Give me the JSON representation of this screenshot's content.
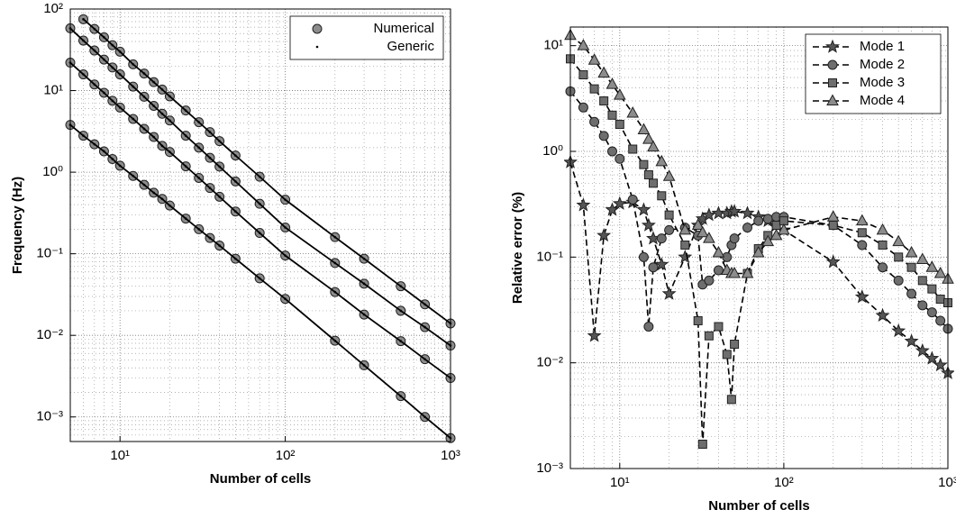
{
  "chart_data": [
    {
      "type": "line",
      "xlabel": "Number of cells",
      "ylabel": "Frequency (Hz)",
      "log_x": true,
      "log_y": true,
      "grid": true,
      "legend": "upper right",
      "xlim": [
        5,
        1000
      ],
      "ylim": [
        0.0005,
        100
      ],
      "xticks": [
        {
          "value": 10,
          "label": "10¹"
        },
        {
          "value": 100,
          "label": "10²"
        },
        {
          "value": 1000,
          "label": "10³"
        }
      ],
      "yticks": [
        {
          "value": 0.001,
          "label": "10⁻³"
        },
        {
          "value": 0.01,
          "label": "10⁻²"
        },
        {
          "value": 0.1,
          "label": "10⁻¹"
        },
        {
          "value": 1,
          "label": "10⁰"
        },
        {
          "value": 10,
          "label": "10¹"
        },
        {
          "value": 100,
          "label": "10²"
        }
      ],
      "x": [
        5,
        6,
        7,
        8,
        9,
        10,
        12,
        14,
        16,
        18,
        20,
        25,
        30,
        35,
        40,
        50,
        70,
        100,
        200,
        300,
        500,
        700,
        1000
      ],
      "series": [
        {
          "name": "Numerical",
          "color": "#8c8c8c",
          "marker": "circle",
          "line_style": "none",
          "values": [
            [
              3.8,
              2.8,
              2.2,
              1.8,
              1.45,
              1.2,
              0.9,
              0.7,
              0.56,
              0.47,
              0.39,
              0.27,
              0.2,
              0.156,
              0.126,
              0.087,
              0.05,
              0.028,
              0.0086,
              0.0043,
              0.0018,
              0.001,
              0.00055
            ],
            [
              22,
              15.8,
              11.9,
              9.4,
              7.5,
              6.2,
              4.5,
              3.4,
              2.7,
              2.1,
              1.77,
              1.18,
              0.85,
              0.64,
              0.5,
              0.33,
              0.18,
              0.095,
              0.034,
              0.018,
              0.0085,
              0.0051,
              0.003
            ],
            [
              58,
              41,
              31,
              24,
              19.2,
              15.8,
              11.2,
              8.4,
              6.5,
              5.2,
              4.3,
              2.8,
              2.0,
              1.5,
              1.17,
              0.77,
              0.41,
              0.21,
              0.077,
              0.043,
              0.02,
              0.0126,
              0.0075
            ],
            [
              null,
              75,
              57,
              45,
              36,
              30,
              21,
              16.2,
              12.7,
              10.3,
              8.5,
              5.7,
              4.1,
              3.1,
              2.4,
              1.6,
              0.88,
              0.46,
              0.16,
              0.087,
              0.04,
              0.024,
              0.014
            ]
          ]
        },
        {
          "name": "Generic",
          "color": "#000000",
          "marker": "dot",
          "line_style": "solid",
          "values": [
            [
              3.8,
              2.8,
              2.2,
              1.8,
              1.45,
              1.2,
              0.9,
              0.7,
              0.56,
              0.47,
              0.39,
              0.27,
              0.2,
              0.156,
              0.126,
              0.087,
              0.05,
              0.028,
              0.0086,
              0.0043,
              0.0018,
              0.001,
              0.00055
            ],
            [
              22,
              15.8,
              11.9,
              9.4,
              7.5,
              6.2,
              4.5,
              3.4,
              2.7,
              2.1,
              1.77,
              1.18,
              0.85,
              0.64,
              0.5,
              0.33,
              0.18,
              0.095,
              0.034,
              0.018,
              0.0085,
              0.0051,
              0.003
            ],
            [
              58,
              41,
              31,
              24,
              19.2,
              15.8,
              11.2,
              8.4,
              6.5,
              5.2,
              4.3,
              2.8,
              2.0,
              1.5,
              1.17,
              0.77,
              0.41,
              0.21,
              0.077,
              0.043,
              0.02,
              0.0126,
              0.0075
            ],
            [
              null,
              75,
              57,
              45,
              36,
              30,
              21,
              16.2,
              12.7,
              10.3,
              8.5,
              5.7,
              4.1,
              3.1,
              2.4,
              1.6,
              0.88,
              0.46,
              0.16,
              0.087,
              0.04,
              0.024,
              0.014
            ]
          ]
        }
      ]
    },
    {
      "type": "line",
      "xlabel": "Number of cells",
      "ylabel": "Relative error (%)",
      "log_x": true,
      "log_y": true,
      "grid": true,
      "legend": "upper right",
      "xlim": [
        5,
        1000
      ],
      "ylim": [
        0.001,
        15
      ],
      "xticks": [
        {
          "value": 10,
          "label": "10¹"
        },
        {
          "value": 100,
          "label": "10²"
        },
        {
          "value": 1000,
          "label": "10³"
        }
      ],
      "yticks": [
        {
          "value": 0.001,
          "label": "10⁻³"
        },
        {
          "value": 0.01,
          "label": "10⁻²"
        },
        {
          "value": 0.1,
          "label": "10⁻¹"
        },
        {
          "value": 1,
          "label": "10⁰"
        },
        {
          "value": 10,
          "label": "10¹"
        }
      ],
      "x": [
        5,
        6,
        7,
        8,
        9,
        10,
        12,
        14,
        15,
        16,
        18,
        20,
        25,
        30,
        32,
        35,
        40,
        45,
        48,
        50,
        60,
        70,
        80,
        90,
        100,
        200,
        300,
        400,
        500,
        600,
        700,
        800,
        900,
        1000
      ],
      "series": [
        {
          "name": "Mode 1",
          "color": "#555555",
          "marker": "star",
          "line_style": "dashed",
          "values": [
            0.79,
            0.31,
            0.018,
            0.16,
            0.28,
            0.32,
            0.33,
            0.28,
            0.2,
            0.15,
            0.085,
            0.045,
            0.1,
            0.2,
            0.23,
            0.25,
            0.26,
            0.26,
            0.27,
            0.27,
            0.26,
            0.24,
            0.22,
            0.2,
            0.18,
            0.09,
            0.042,
            0.028,
            0.02,
            0.016,
            0.013,
            0.011,
            0.0095,
            0.008
          ]
        },
        {
          "name": "Mode 2",
          "color": "#6e6e6e",
          "marker": "circle",
          "line_style": "dashed",
          "values": [
            3.7,
            2.6,
            1.9,
            1.4,
            1.0,
            0.85,
            0.35,
            0.1,
            0.022,
            0.08,
            0.15,
            0.18,
            0.19,
            0.16,
            0.055,
            0.06,
            0.075,
            0.1,
            0.13,
            0.15,
            0.19,
            0.22,
            0.23,
            0.24,
            0.24,
            0.2,
            0.13,
            0.08,
            0.06,
            0.045,
            0.035,
            0.03,
            0.025,
            0.021
          ]
        },
        {
          "name": "Mode 3",
          "color": "#6e6e6e",
          "marker": "square",
          "line_style": "dashed",
          "values": [
            7.5,
            5.3,
            3.9,
            3.0,
            2.2,
            1.8,
            1.05,
            0.75,
            0.6,
            0.5,
            0.38,
            0.25,
            0.13,
            0.025,
            0.0017,
            0.018,
            0.022,
            0.012,
            0.0045,
            0.015,
            0.07,
            0.12,
            0.16,
            0.2,
            0.22,
            0.2,
            0.17,
            0.13,
            0.1,
            0.08,
            0.06,
            0.05,
            0.04,
            0.037
          ]
        },
        {
          "name": "Mode 4",
          "color": "#8c8c8c",
          "marker": "triangle",
          "line_style": "dashed",
          "values": [
            12.5,
            10,
            7.3,
            5.5,
            4.3,
            3.4,
            2.3,
            1.6,
            1.3,
            1.1,
            0.8,
            0.58,
            0.18,
            0.2,
            0.17,
            0.15,
            0.11,
            0.075,
            0.07,
            0.07,
            0.07,
            0.11,
            0.14,
            0.16,
            0.18,
            0.24,
            0.22,
            0.18,
            0.14,
            0.11,
            0.095,
            0.08,
            0.07,
            0.062
          ]
        }
      ]
    }
  ]
}
